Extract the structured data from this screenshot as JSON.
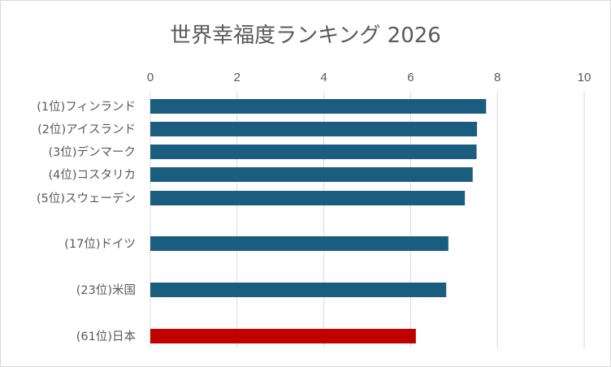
{
  "chart_data": {
    "type": "bar",
    "orientation": "horizontal",
    "title": "世界幸福度ランキング 2026",
    "xlabel": "",
    "ylabel": "",
    "xlim": [
      0,
      10
    ],
    "x_ticks": [
      "0",
      "2",
      "4",
      "6",
      "8",
      "10"
    ],
    "x_axis_position": "top",
    "grid": true,
    "legend": "none",
    "categories": [
      "(1位)フィンランド",
      "(2位)アイスランド",
      "(3位)デンマーク",
      "(4位)コスタリカ",
      "(5位)スウェーデン",
      "(17位)ドイツ",
      "(23位)米国",
      "(61位)日本"
    ],
    "values": [
      7.74,
      7.53,
      7.52,
      7.43,
      7.25,
      6.87,
      6.82,
      6.12
    ],
    "colors": {
      "default_bar": "#1b5d7e",
      "highlight_bar": "#c00000",
      "gridline": "#d9d9d9",
      "text": "#595959"
    },
    "highlight_category": "(61位)日本"
  }
}
